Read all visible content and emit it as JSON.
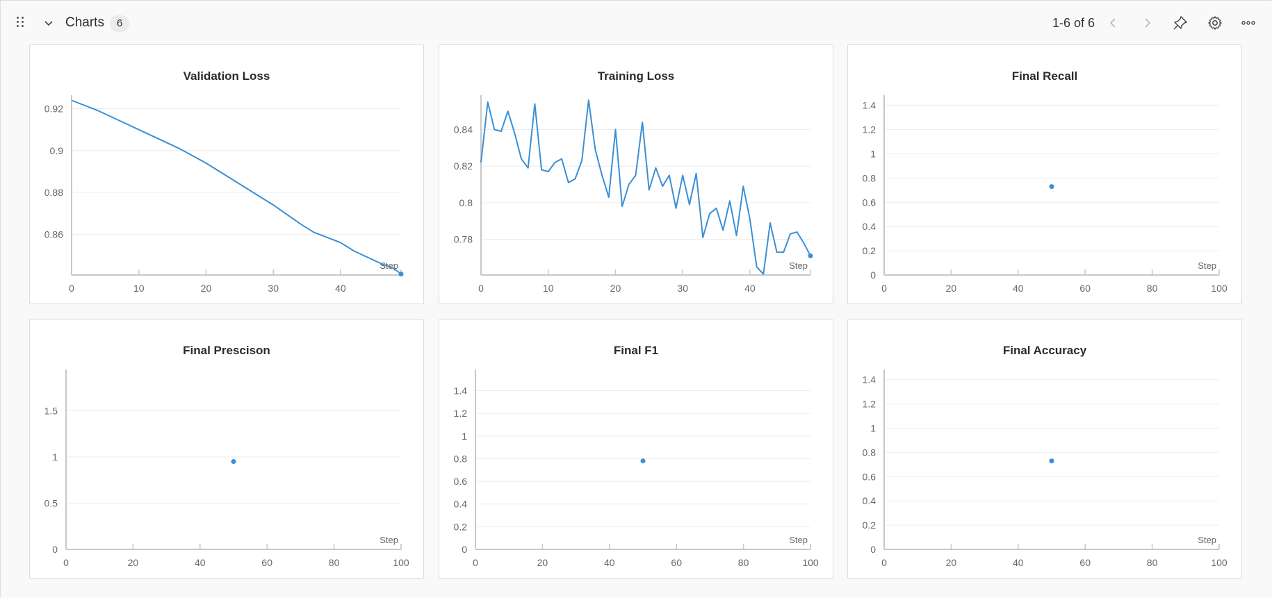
{
  "header": {
    "title": "Charts",
    "count": "6",
    "pager": "1-6 of 6",
    "icons": [
      "drag-handle-icon",
      "chevron-down-icon",
      "chevron-left-icon",
      "chevron-right-icon",
      "pin-icon",
      "gear-icon",
      "more-icon"
    ]
  },
  "colors": {
    "series": "#3a8fd4",
    "grid": "#ececec",
    "axis": "#c8c8c8"
  },
  "chart_data": [
    {
      "type": "line",
      "title": "Validation Loss",
      "xlabel": "Step",
      "xlim": [
        0,
        49
      ],
      "ylim": [
        0.8405,
        0.9245
      ],
      "xticks": [
        0,
        10,
        20,
        30,
        40
      ],
      "yticks": [
        0.86,
        0.88,
        0.9,
        0.92
      ],
      "x": [
        0,
        2,
        4,
        6,
        8,
        10,
        12,
        14,
        16,
        18,
        20,
        22,
        24,
        26,
        28,
        30,
        32,
        34,
        36,
        38,
        40,
        42,
        44,
        46,
        48,
        49
      ],
      "values": [
        0.924,
        0.9215,
        0.919,
        0.916,
        0.913,
        0.91,
        0.907,
        0.904,
        0.901,
        0.8975,
        0.894,
        0.89,
        0.886,
        0.882,
        0.878,
        0.874,
        0.8695,
        0.865,
        0.861,
        0.8585,
        0.856,
        0.852,
        0.849,
        0.846,
        0.8435,
        0.841
      ]
    },
    {
      "type": "line",
      "title": "Training Loss",
      "xlabel": "Step",
      "xlim": [
        0,
        49
      ],
      "ylim": [
        0.7605,
        0.8565
      ],
      "xticks": [
        0,
        10,
        20,
        30,
        40
      ],
      "yticks": [
        0.78,
        0.8,
        0.82,
        0.84
      ],
      "x": [
        0,
        1,
        2,
        3,
        4,
        5,
        6,
        7,
        8,
        9,
        10,
        11,
        12,
        13,
        14,
        15,
        16,
        17,
        18,
        19,
        20,
        21,
        22,
        23,
        24,
        25,
        26,
        27,
        28,
        29,
        30,
        31,
        32,
        33,
        34,
        35,
        36,
        37,
        38,
        39,
        40,
        41,
        42,
        43,
        44,
        45,
        46,
        47,
        48,
        49
      ],
      "values": [
        0.822,
        0.855,
        0.84,
        0.839,
        0.85,
        0.838,
        0.824,
        0.819,
        0.854,
        0.818,
        0.817,
        0.822,
        0.824,
        0.811,
        0.813,
        0.823,
        0.856,
        0.829,
        0.815,
        0.803,
        0.84,
        0.798,
        0.81,
        0.815,
        0.844,
        0.807,
        0.819,
        0.809,
        0.815,
        0.797,
        0.815,
        0.799,
        0.816,
        0.781,
        0.794,
        0.797,
        0.785,
        0.801,
        0.782,
        0.809,
        0.791,
        0.765,
        0.761,
        0.789,
        0.773,
        0.773,
        0.783,
        0.784,
        0.778,
        0.771
      ]
    },
    {
      "type": "scatter",
      "title": "Final Recall",
      "xlabel": "Step",
      "xlim": [
        0,
        100
      ],
      "ylim": [
        0,
        1.45
      ],
      "xticks": [
        0,
        20,
        40,
        60,
        80,
        100
      ],
      "yticks": [
        0,
        0.2,
        0.4,
        0.6,
        0.8,
        1,
        1.2,
        1.4
      ],
      "x": [
        50
      ],
      "values": [
        0.73
      ]
    },
    {
      "type": "scatter",
      "title": "Final Prescison",
      "xlabel": "Step",
      "xlim": [
        0,
        100
      ],
      "ylim": [
        0,
        1.9
      ],
      "xticks": [
        0,
        20,
        40,
        60,
        80,
        100
      ],
      "yticks": [
        0,
        0.5,
        1,
        1.5
      ],
      "x": [
        50
      ],
      "values": [
        0.95
      ]
    },
    {
      "type": "scatter",
      "title": "Final F1",
      "xlabel": "Step",
      "xlim": [
        0,
        100
      ],
      "ylim": [
        0,
        1.55
      ],
      "xticks": [
        0,
        20,
        40,
        60,
        80,
        100
      ],
      "yticks": [
        0,
        0.2,
        0.4,
        0.6,
        0.8,
        1,
        1.2,
        1.4
      ],
      "x": [
        50
      ],
      "values": [
        0.78
      ]
    },
    {
      "type": "scatter",
      "title": "Final Accuracy",
      "xlabel": "Step",
      "xlim": [
        0,
        100
      ],
      "ylim": [
        0,
        1.45
      ],
      "xticks": [
        0,
        20,
        40,
        60,
        80,
        100
      ],
      "yticks": [
        0,
        0.2,
        0.4,
        0.6,
        0.8,
        1,
        1.2,
        1.4
      ],
      "x": [
        50
      ],
      "values": [
        0.73
      ]
    }
  ]
}
